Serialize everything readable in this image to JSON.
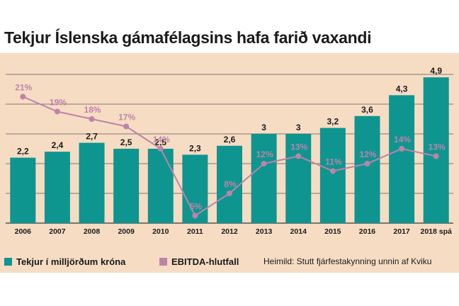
{
  "title": "Tekjur Íslenska gámafélagsins hafa farið vaxandi",
  "source": "Heimild: Stutt fjárfestakynning unnin af Kviku",
  "colors": {
    "bar": "#0e9590",
    "line": "#bd84a7",
    "background": "#f7dcc4",
    "grid": "#555555"
  },
  "chart_data": {
    "type": "bar",
    "title": "Tekjur Íslenska gámafélagsins hafa farið vaxandi",
    "categories": [
      "2006",
      "2007",
      "2008",
      "2009",
      "2010",
      "2011",
      "2012",
      "2013",
      "2014",
      "2015",
      "2016",
      "2017",
      "2018 spá"
    ],
    "series": [
      {
        "name": "Tekjur í milljörðum króna",
        "type": "bar",
        "values": [
          2.2,
          2.4,
          2.7,
          2.5,
          2.5,
          2.3,
          2.6,
          3,
          3,
          3.2,
          3.6,
          4.3,
          4.9
        ],
        "labels": [
          "2,2",
          "2,4",
          "2,7",
          "2,5",
          "2,5",
          "2,3",
          "2,6",
          "3",
          "3",
          "3,2",
          "3,6",
          "4,3",
          "4,9"
        ]
      },
      {
        "name": "EBITDA-hlutfall",
        "type": "line",
        "values": [
          21,
          19,
          18,
          17,
          14,
          5,
          8,
          12,
          13,
          11,
          12,
          14,
          13
        ],
        "labels": [
          "21%",
          "19%",
          "18%",
          "17%",
          "14%",
          "5%",
          "8%",
          "12%",
          "13%",
          "11%",
          "12%",
          "14%",
          "13%"
        ]
      }
    ],
    "bar_ylim": [
      0,
      5
    ],
    "line_ylim": [
      4,
      24
    ],
    "grid": true,
    "legend": "bottom-left"
  }
}
